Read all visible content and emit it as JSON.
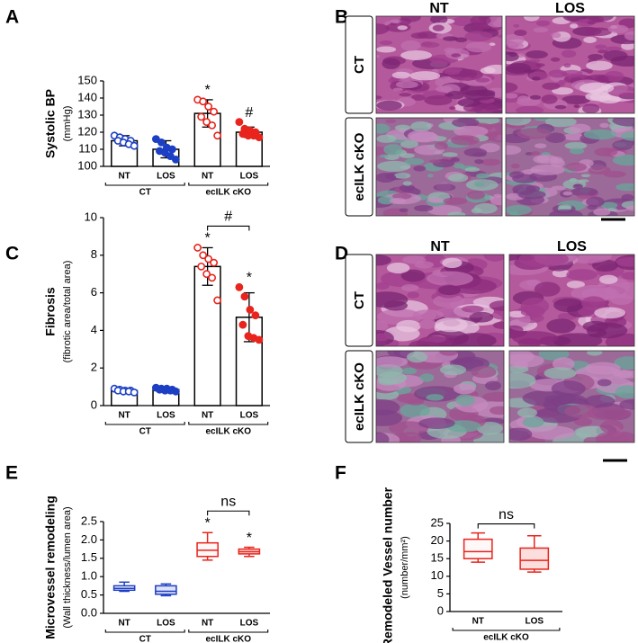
{
  "chart_data": [
    {
      "type": "bar",
      "panel": "A",
      "ylabel": "Systolic BP",
      "ylabel_unit": "(mmHg)",
      "ylim": [
        100,
        150
      ],
      "yticks": [
        100,
        110,
        120,
        130,
        140,
        150
      ],
      "categories": [
        "NT",
        "LOS"
      ],
      "series": [
        {
          "name": "CT",
          "color": "#1c3fc4",
          "values": [
            115,
            110
          ],
          "errors": [
            3,
            5
          ],
          "points": [
            [
              118,
              117,
              116,
              115,
              115,
              114,
              113,
              112
            ],
            [
              116,
              114,
              111,
              110,
              109,
              108,
              106,
              104
            ]
          ]
        },
        {
          "name": "ecILK cKO",
          "color": "#e8241c",
          "values": [
            131,
            120
          ],
          "errors": [
            8,
            3
          ],
          "points": [
            [
              139,
              138,
              135,
              132,
              129,
              126,
              124,
              118
            ],
            [
              126,
              122,
              121,
              120,
              119,
              118,
              118,
              117
            ]
          ],
          "marks": [
            "*",
            "#"
          ]
        }
      ]
    },
    {
      "type": "bar",
      "panel": "C",
      "ylabel": "Fibrosis",
      "ylabel_unit": "(fibrotic area/total area)",
      "ylim": [
        0,
        10
      ],
      "yticks": [
        0,
        2,
        4,
        6,
        8,
        10
      ],
      "categories": [
        "NT",
        "LOS"
      ],
      "comparison": "#",
      "series": [
        {
          "name": "CT",
          "color": "#1c3fc4",
          "values": [
            0.8,
            0.85
          ],
          "errors": [
            0.1,
            0.1
          ],
          "points": [
            [
              0.9,
              0.85,
              0.8,
              0.8,
              0.8,
              0.75,
              0.75,
              0.7
            ],
            [
              0.95,
              0.9,
              0.9,
              0.85,
              0.85,
              0.8,
              0.8,
              0.75
            ]
          ]
        },
        {
          "name": "ecILK cKO",
          "color": "#e8241c",
          "values": [
            7.4,
            4.7
          ],
          "errors": [
            1.0,
            1.3
          ],
          "points": [
            [
              8.4,
              8.0,
              7.8,
              7.6,
              7.4,
              7.0,
              6.8,
              5.6
            ],
            [
              6.3,
              5.8,
              5.1,
              4.8,
              4.3,
              3.7,
              3.6,
              3.5
            ]
          ],
          "marks": [
            "*",
            "*"
          ]
        }
      ]
    },
    {
      "type": "box",
      "panel": "E",
      "ylabel": "Microvessel remodeling",
      "ylabel_unit": "(Wall thickness/lumen area)",
      "ylim": [
        0,
        2.5
      ],
      "yticks": [
        {
          "value": 0,
          "label": "0.0"
        },
        0.5,
        {
          "value": 1,
          "label": "1.0"
        },
        1.5,
        {
          "value": 2,
          "label": "2.0"
        },
        2.5
      ],
      "categories": [
        "NT",
        "LOS"
      ],
      "comparison": "ns",
      "series": [
        {
          "name": "CT",
          "color": "#1c3fc4",
          "min": [
            0.6,
            0.48
          ],
          "q1": [
            0.63,
            0.52
          ],
          "median": [
            0.68,
            0.6
          ],
          "q3": [
            0.75,
            0.75
          ],
          "max": [
            0.85,
            0.8
          ]
        },
        {
          "name": "ecILK cKO",
          "color": "#e8241c",
          "min": [
            1.45,
            1.55
          ],
          "q1": [
            1.55,
            1.62
          ],
          "median": [
            1.72,
            1.68
          ],
          "q3": [
            1.92,
            1.75
          ],
          "max": [
            2.2,
            1.8
          ],
          "marks": [
            "*",
            "*"
          ]
        }
      ]
    },
    {
      "type": "box",
      "panel": "F",
      "ylabel": "Remodeled Vessel number",
      "ylabel_unit": "(number/mm²)",
      "ylim": [
        0,
        25
      ],
      "yticks": [
        0,
        5,
        10,
        15,
        20,
        25
      ],
      "categories": [
        "NT",
        "LOS"
      ],
      "comparison": "ns",
      "series": [
        {
          "name": "ecILK cKO",
          "color": "#e8241c",
          "min": [
            14,
            11.2
          ],
          "q1": [
            15,
            12
          ],
          "median": [
            17,
            14.5
          ],
          "q3": [
            20.5,
            18
          ],
          "max": [
            22.3,
            21.5
          ]
        }
      ]
    }
  ],
  "images": [
    {
      "panel": "B",
      "columns": [
        "NT",
        "LOS"
      ],
      "rows": [
        "CT",
        "ecILK cKO"
      ]
    },
    {
      "panel": "D",
      "columns": [
        "NT",
        "LOS"
      ],
      "rows": [
        "CT",
        "ecILK cKO"
      ]
    }
  ]
}
